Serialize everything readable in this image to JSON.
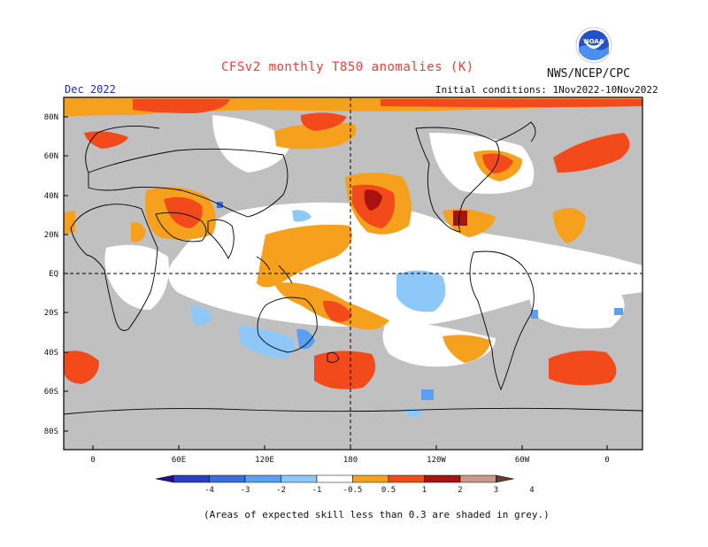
{
  "header": {
    "title": "CFSv2 monthly T850 anomalies (K)",
    "agency": "NWS/NCEP/CPC",
    "month": "Dec 2022",
    "initial_conditions": "Initial conditions: 1Nov2022-10Nov2022",
    "logo_text": "NOAA"
  },
  "axes": {
    "lat_labels": [
      "80N",
      "60N",
      "40N",
      "20N",
      "EQ",
      "20S",
      "40S",
      "60S",
      "80S"
    ],
    "lon_labels": [
      "0",
      "60E",
      "120E",
      "180",
      "120W",
      "60W",
      "0"
    ]
  },
  "colorbar": {
    "labels": [
      "-4",
      "-3",
      "-2",
      "-1",
      "-0.5",
      "0.5",
      "1",
      "2",
      "3",
      "4"
    ],
    "colors": [
      "#2a0d8f",
      "#2a3fc4",
      "#3a6fe0",
      "#5a9ff2",
      "#8ec8f8",
      "#ffffff",
      "#f6a11e",
      "#f24a1a",
      "#a8120f",
      "#cc9988",
      "#6b3b2e"
    ]
  },
  "colors": {
    "grey": "#c0c0c0",
    "neutral": "#ffffff",
    "pos1": "#f6a11e",
    "pos2": "#f24a1a",
    "pos3": "#a8120f",
    "neg1": "#8ec8f8",
    "neg2": "#5a9ff2",
    "neg3": "#3a6fe0"
  },
  "footnote": "(Areas of expected skill less than 0.3 are shaded in grey.)"
}
